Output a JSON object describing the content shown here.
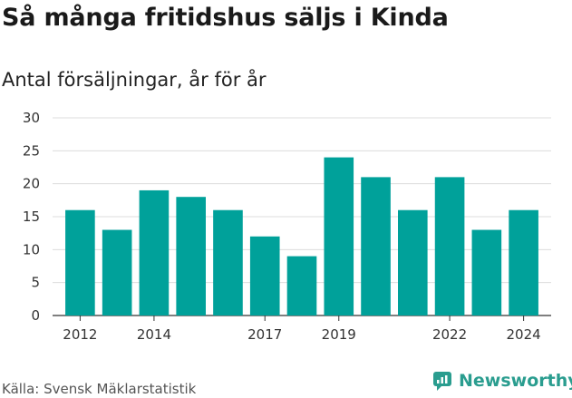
{
  "title": "Så många fritidshus säljs i Kinda",
  "subtitle": "Antal försäljningar, år för år",
  "source": "Källa: Svensk Mäklarstatistik",
  "logo_text": "Newsworthy",
  "colors": {
    "bar": "#00a19a",
    "grid": "#dcdcdc",
    "brand": "#2a9d8f"
  },
  "chart_data": {
    "type": "bar",
    "categories": [
      "2012",
      "2013",
      "2014",
      "2015",
      "2016",
      "2017",
      "2018",
      "2019",
      "2020",
      "2021",
      "2022",
      "2023",
      "2024"
    ],
    "values": [
      16,
      13,
      19,
      18,
      16,
      12,
      9,
      24,
      21,
      16,
      21,
      13,
      16
    ],
    "x_tick_labels": [
      "2012",
      "2014",
      "2017",
      "2019",
      "2022",
      "2024"
    ],
    "y_ticks": [
      0,
      5,
      10,
      15,
      20,
      25,
      30
    ],
    "ylim": [
      0,
      30
    ],
    "grid": true
  }
}
